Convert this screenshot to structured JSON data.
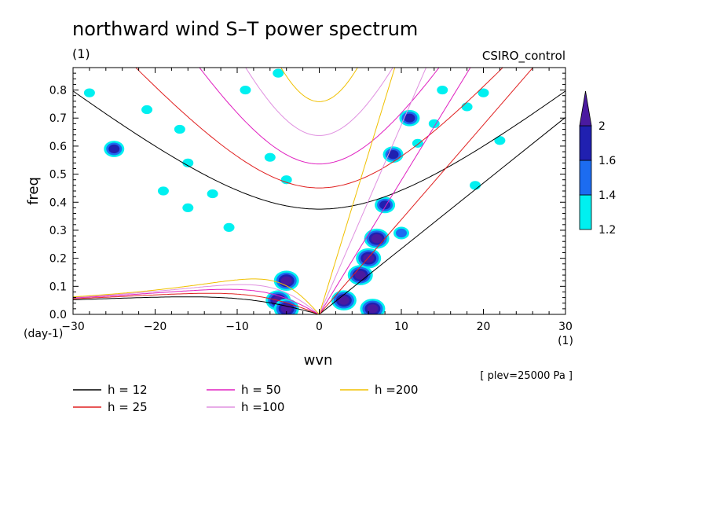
{
  "chart_data": {
    "type": "heatmap",
    "title": "northward wind S–T power spectrum",
    "subtitle": "(1)",
    "run_label": "CSIRO_control",
    "xlabel": "wvn",
    "xunit": "(1)",
    "ylabel": "freq",
    "yunit": "(day-1)",
    "level_note": "[ plev=25000 Pa ]",
    "xlim": [
      -30,
      30
    ],
    "ylim": [
      0,
      0.88
    ],
    "x_ticks": [
      -30,
      -20,
      -10,
      0,
      10,
      20,
      30
    ],
    "y_ticks": [
      0.0,
      0.1,
      0.2,
      0.3,
      0.4,
      0.5,
      0.6,
      0.7,
      0.8
    ],
    "colorbar": {
      "levels": [
        1.2,
        1.4,
        1.6,
        2
      ],
      "colors": [
        "#00f0f0",
        "#1c6cf0",
        "#2020b0",
        "#4a1aa0"
      ]
    },
    "dispersion_curves": [
      {
        "name": "h = 12",
        "h": 12,
        "color": "#000000"
      },
      {
        "name": "h = 25",
        "h": 25,
        "color": "#e02020"
      },
      {
        "name": "h = 50",
        "h": 50,
        "color": "#e020c0"
      },
      {
        "name": "h =100",
        "h": 100,
        "color": "#e090e0"
      },
      {
        "name": "h =200",
        "h": 200,
        "color": "#f0c000"
      }
    ],
    "contour_regions": [
      {
        "x": -28,
        "y": 0.79,
        "level": 1.2
      },
      {
        "x": -21,
        "y": 0.73,
        "level": 1.2
      },
      {
        "x": -25,
        "y": 0.59,
        "level": 1.6
      },
      {
        "x": -19,
        "y": 0.44,
        "level": 1.2
      },
      {
        "x": -16,
        "y": 0.54,
        "level": 1.2
      },
      {
        "x": -17,
        "y": 0.66,
        "level": 1.2
      },
      {
        "x": -13,
        "y": 0.43,
        "level": 1.2
      },
      {
        "x": -16,
        "y": 0.38,
        "level": 1.2
      },
      {
        "x": -11,
        "y": 0.31,
        "level": 1.2
      },
      {
        "x": -6,
        "y": 0.56,
        "level": 1.2
      },
      {
        "x": -4,
        "y": 0.48,
        "level": 1.2
      },
      {
        "x": -5,
        "y": 0.86,
        "level": 1.2
      },
      {
        "x": -9,
        "y": 0.8,
        "level": 1.2
      },
      {
        "x": -4,
        "y": 0.12,
        "level": 2
      },
      {
        "x": -5,
        "y": 0.05,
        "level": 2
      },
      {
        "x": -4,
        "y": 0.02,
        "level": 2
      },
      {
        "x": 3,
        "y": 0.05,
        "level": 2
      },
      {
        "x": 5,
        "y": 0.14,
        "level": 2
      },
      {
        "x": 6,
        "y": 0.2,
        "level": 2
      },
      {
        "x": 7,
        "y": 0.27,
        "level": 2
      },
      {
        "x": 6.5,
        "y": 0.02,
        "level": 2
      },
      {
        "x": 8,
        "y": 0.39,
        "level": 1.6
      },
      {
        "x": 9,
        "y": 0.57,
        "level": 1.6
      },
      {
        "x": 11,
        "y": 0.7,
        "level": 1.6
      },
      {
        "x": 12,
        "y": 0.61,
        "level": 1.2
      },
      {
        "x": 14,
        "y": 0.68,
        "level": 1.2
      },
      {
        "x": 15,
        "y": 0.8,
        "level": 1.2
      },
      {
        "x": 18,
        "y": 0.74,
        "level": 1.2
      },
      {
        "x": 20,
        "y": 0.79,
        "level": 1.2
      },
      {
        "x": 10,
        "y": 0.29,
        "level": 1.4
      },
      {
        "x": 19,
        "y": 0.46,
        "level": 1.2
      },
      {
        "x": 22,
        "y": 0.62,
        "level": 1.2
      }
    ]
  }
}
